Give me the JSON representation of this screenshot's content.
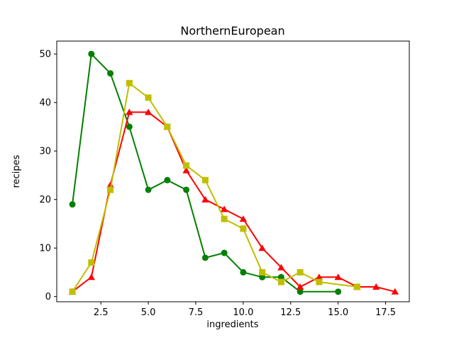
{
  "figure": {
    "background": "#ffffff",
    "title": "NorthernEuropean"
  },
  "chart_data": {
    "type": "line",
    "title": "NorthernEuropean",
    "xlabel": "ingredients",
    "ylabel": "recipes",
    "xlim": [
      0.176,
      18.75
    ],
    "ylim": [
      -1.07,
      52.66
    ],
    "grid": false,
    "legend": "none",
    "xticks": {
      "values": [
        2.5,
        5.0,
        7.5,
        10.0,
        12.5,
        15.0,
        17.5
      ],
      "labels": [
        "2.5",
        "5.0",
        "7.5",
        "10.0",
        "12.5",
        "15.0",
        "17.5"
      ]
    },
    "yticks": {
      "values": [
        0,
        10,
        20,
        30,
        40,
        50
      ],
      "labels": [
        "0",
        "10",
        "20",
        "30",
        "40",
        "50"
      ]
    },
    "series": [
      {
        "name": "green-circle-series",
        "color": "#008000",
        "marker": "circle",
        "points": [
          [
            1,
            19
          ],
          [
            2,
            50
          ],
          [
            3,
            46
          ],
          [
            4,
            35
          ],
          [
            5,
            22
          ],
          [
            6,
            24
          ],
          [
            7,
            22
          ],
          [
            8,
            8
          ],
          [
            9,
            9
          ],
          [
            10,
            5
          ],
          [
            11,
            4
          ],
          [
            12,
            4
          ],
          [
            13,
            1
          ],
          [
            15,
            1
          ]
        ]
      },
      {
        "name": "red-triangle-series",
        "color": "#ff0000",
        "marker": "triangle",
        "points": [
          [
            1,
            1
          ],
          [
            2,
            4
          ],
          [
            3,
            23
          ],
          [
            4,
            38
          ],
          [
            5,
            38
          ],
          [
            6,
            35
          ],
          [
            7,
            26
          ],
          [
            8,
            20
          ],
          [
            9,
            18
          ],
          [
            10,
            16
          ],
          [
            11,
            10
          ],
          [
            12,
            6
          ],
          [
            13,
            2
          ],
          [
            14,
            4
          ],
          [
            15,
            4
          ],
          [
            16,
            2
          ],
          [
            17,
            2
          ],
          [
            18,
            1
          ]
        ]
      },
      {
        "name": "yellow-square-series",
        "color": "#bfbf00",
        "marker": "square",
        "points": [
          [
            1,
            1
          ],
          [
            2,
            7
          ],
          [
            3,
            22
          ],
          [
            4,
            44
          ],
          [
            5,
            41
          ],
          [
            6,
            35
          ],
          [
            7,
            27
          ],
          [
            8,
            24
          ],
          [
            9,
            16
          ],
          [
            10,
            14
          ],
          [
            11,
            5
          ],
          [
            12,
            3
          ],
          [
            13,
            5
          ],
          [
            14,
            3
          ],
          [
            16,
            2
          ]
        ]
      }
    ]
  }
}
